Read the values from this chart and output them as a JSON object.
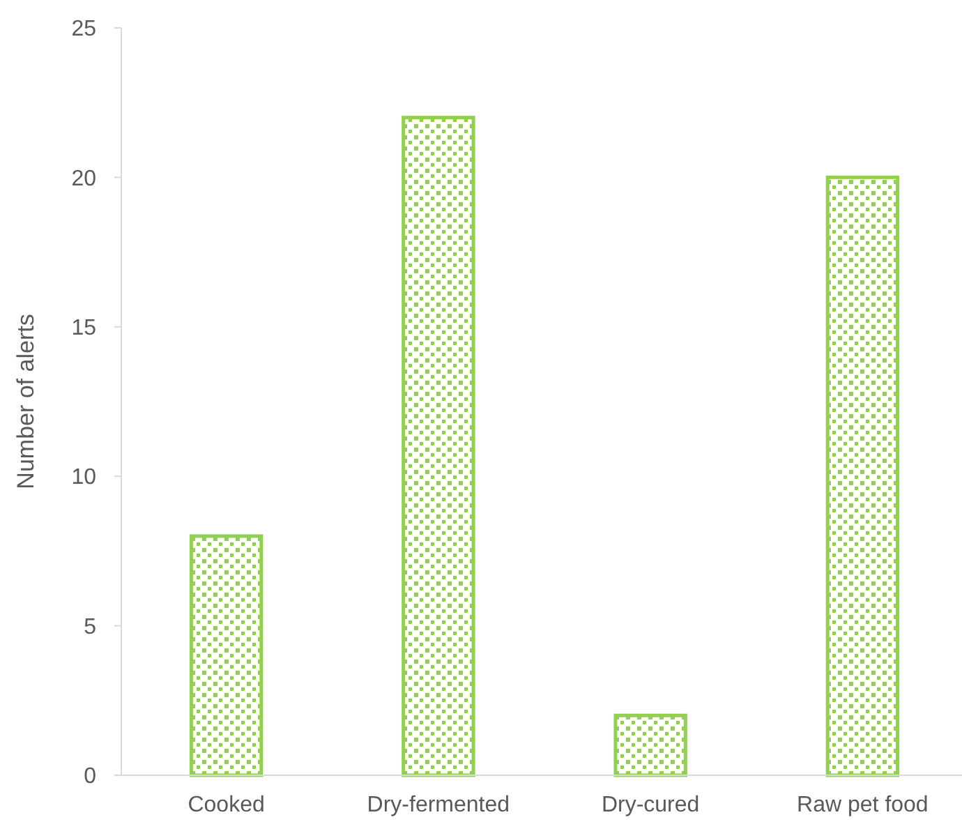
{
  "chart_data": {
    "type": "bar",
    "ylabel": "Number of alerts",
    "categories": [
      "Cooked",
      "Dry-fermented",
      "Dry-cured",
      "Raw pet food"
    ],
    "values": [
      8,
      22,
      2,
      20
    ],
    "color": "#92d050",
    "ylim": [
      0,
      25
    ],
    "yticks": [
      0,
      5,
      10,
      15,
      20,
      25
    ],
    "grid": false
  }
}
